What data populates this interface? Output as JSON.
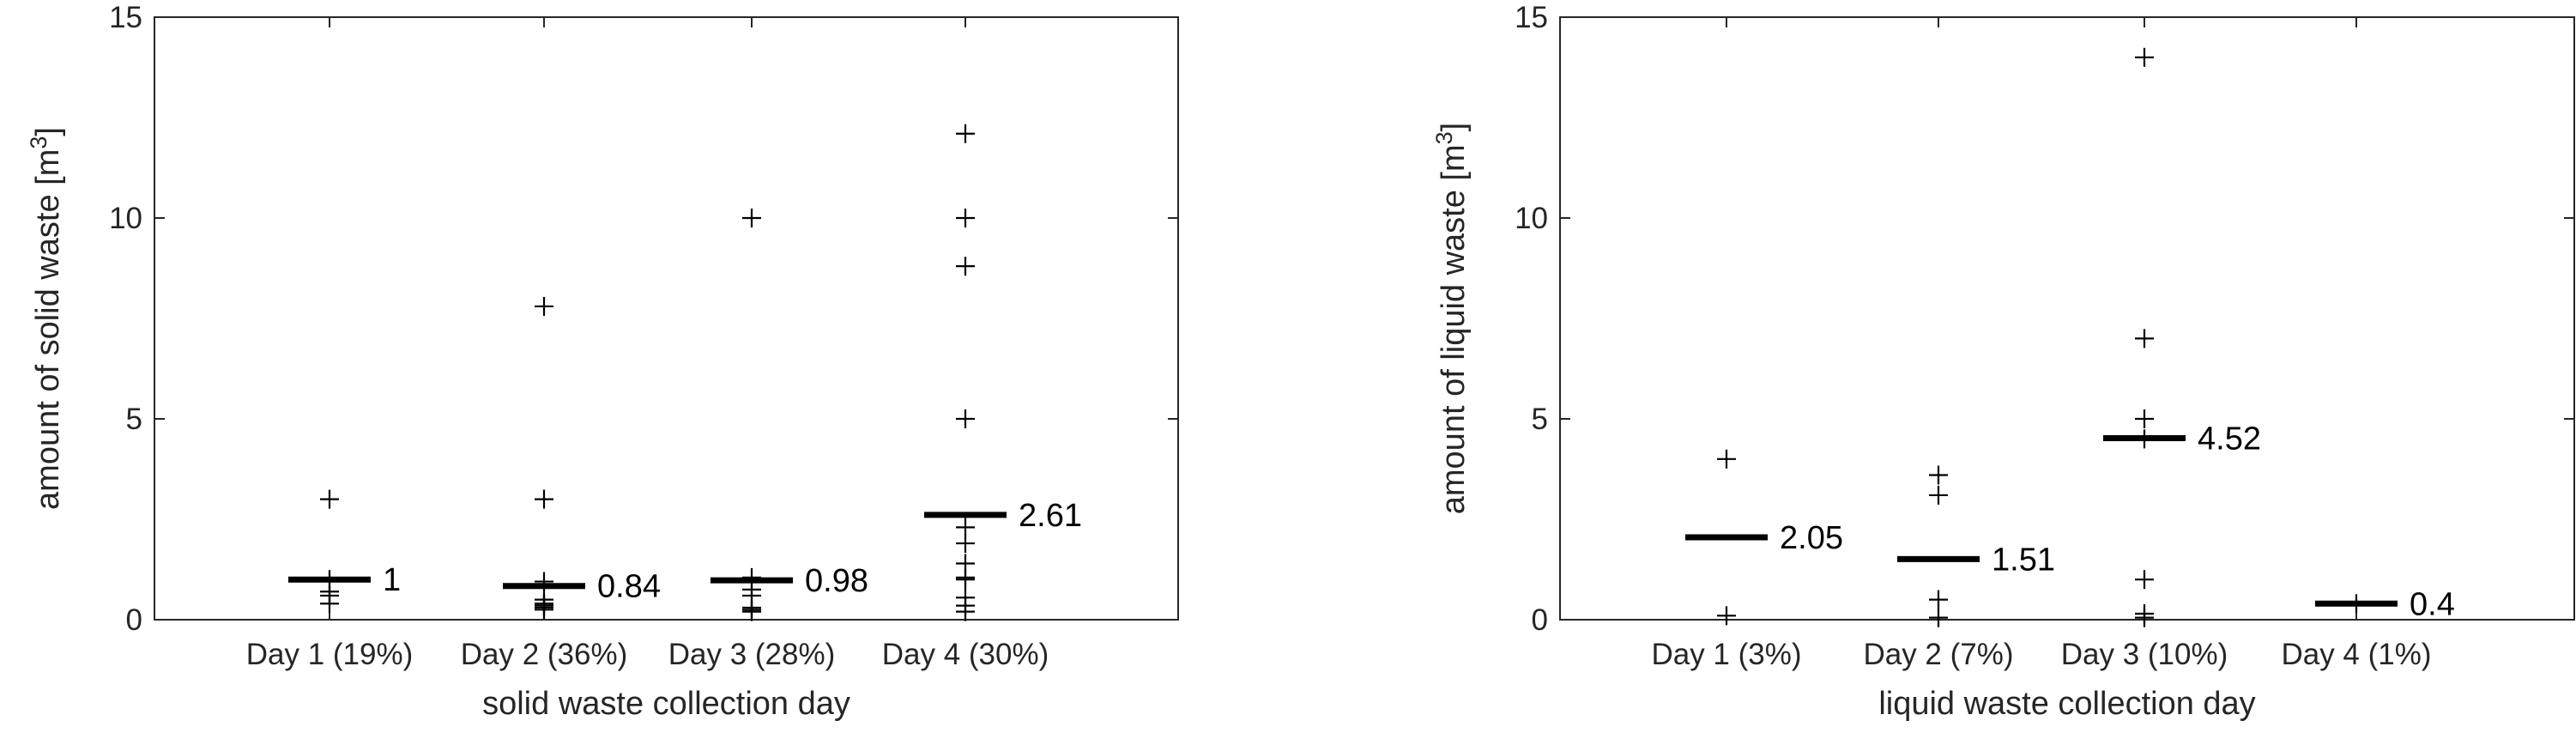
{
  "chart_data": [
    {
      "type": "scatter",
      "xlabel": "solid waste collection day",
      "ylabel_main": "amount of solid waste [m",
      "ylabel_sup": "3",
      "ylabel_close": "]",
      "ylim": [
        0,
        15
      ],
      "yticks": [
        "0",
        "5",
        "10",
        "15"
      ],
      "categories": [
        "Day 1 (19%)",
        "Day 2 (36%)",
        "Day 3 (28%)",
        "Day 4 (30%)"
      ],
      "means": [
        1,
        0.84,
        0.98,
        2.61
      ],
      "mean_labels": [
        "1",
        "0.84",
        "0.98",
        "2.61"
      ],
      "points": [
        [
          3.0,
          1.0,
          0.7,
          0.6,
          0.4
        ],
        [
          7.8,
          3.0,
          0.95,
          0.5,
          0.4,
          0.35,
          0.3,
          0.25
        ],
        [
          10.0,
          1.05,
          0.75,
          0.6,
          0.3,
          0.25,
          0.2
        ],
        [
          12.1,
          10.0,
          8.8,
          5.0,
          2.3,
          1.9,
          1.4,
          1.05,
          1.0,
          0.55,
          0.35,
          0.2
        ]
      ]
    },
    {
      "type": "scatter",
      "xlabel": "liquid waste collection day",
      "ylabel_main": "amount of liquid waste [m",
      "ylabel_sup": "3",
      "ylabel_close": "]",
      "ylim": [
        0,
        15
      ],
      "yticks": [
        "0",
        "5",
        "10",
        "15"
      ],
      "categories": [
        "Day 1 (3%)",
        "Day 2 (7%)",
        "Day 3 (10%)",
        "Day 4 (1%)"
      ],
      "means": [
        2.05,
        1.51,
        4.52,
        0.4
      ],
      "mean_labels": [
        "2.05",
        "1.51",
        "4.52",
        "0.4"
      ],
      "points": [
        [
          4.0,
          0.1
        ],
        [
          3.6,
          3.1,
          0.5,
          0.05
        ],
        [
          14.0,
          7.0,
          5.0,
          4.5,
          1.0,
          0.15,
          0.05
        ],
        [
          0.4
        ]
      ]
    }
  ]
}
